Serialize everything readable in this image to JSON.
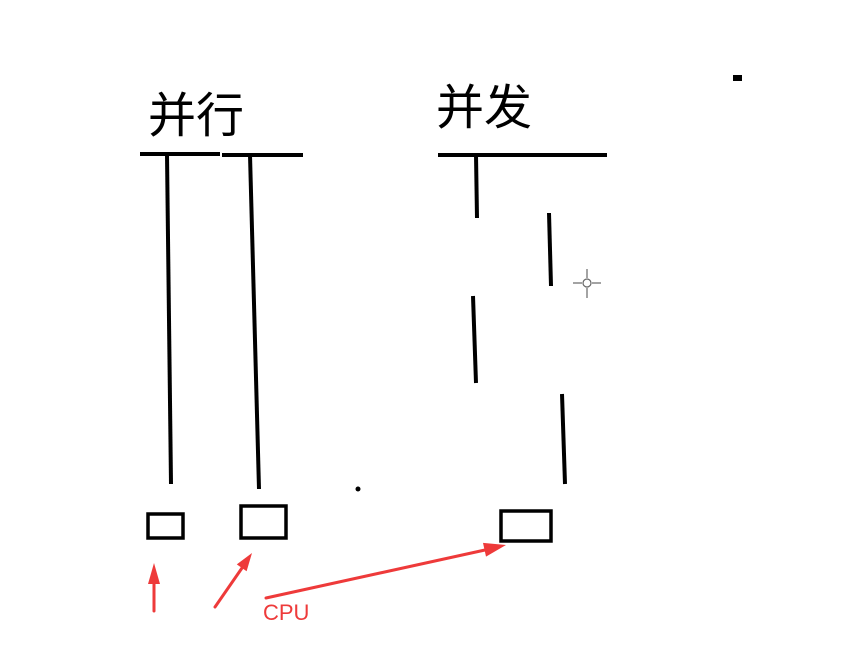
{
  "canvas": {
    "background": "#ffffff"
  },
  "colors": {
    "ink": "#000000",
    "annotation": "#ee3a3a",
    "cursor": "#666666"
  },
  "parallel": {
    "label": "并行"
  },
  "concurrent": {
    "label": "并发"
  },
  "annotation": {
    "label": "CPU"
  },
  "cursor": {
    "icon": "crosshair-cursor-icon"
  }
}
